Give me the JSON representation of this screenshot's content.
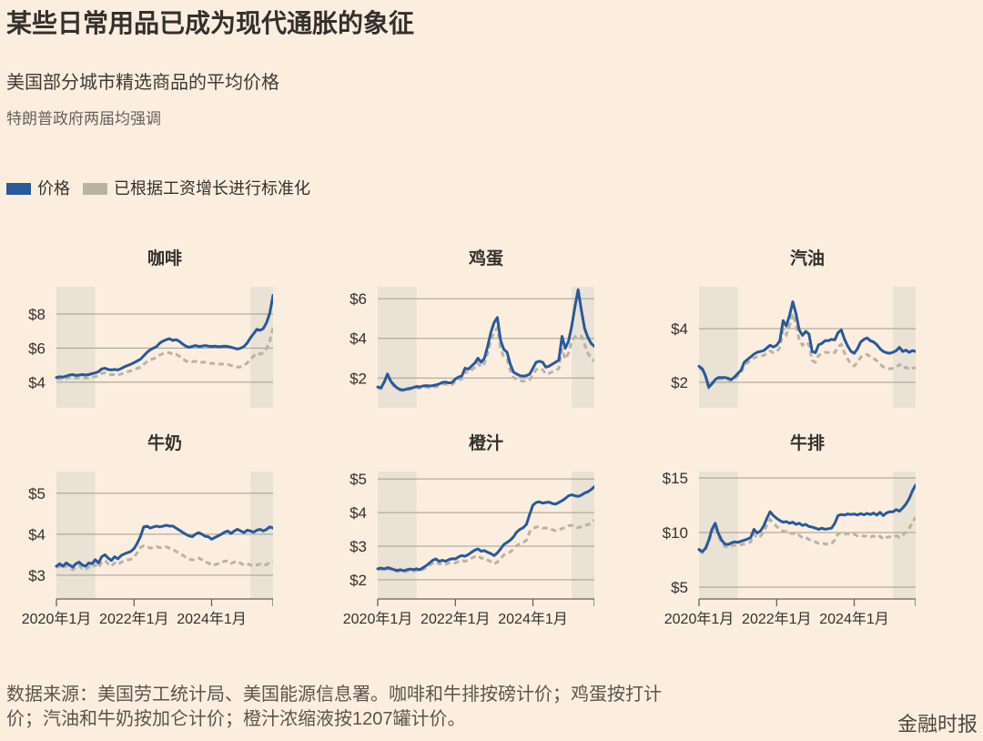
{
  "header": {
    "title": "某些日常用品已成为现代通胀的象征",
    "subtitle": "美国部分城市精选商品的平均价格",
    "note": "特朗普政府两届均强调"
  },
  "legend": {
    "price_label": "价格",
    "normalized_label": "已根据工资增长进行标准化"
  },
  "colors": {
    "background": "#FCEEDF",
    "price_line": "#27599C",
    "normalized_line": "#BCB2A4",
    "band": "#E9E2D5",
    "gridline": "#A29B91",
    "axis": "#66605C",
    "text_dark": "#33302E",
    "text_muted": "#66605C"
  },
  "footer": {
    "source": "数据来源：美国劳工统计局、美国能源信息署。咖啡和牛排按磅计价；鸡蛋按打计价；汽油和牛奶按加仑计价；橙汁浓缩液按1207罐计价。",
    "brand": "金融时报"
  },
  "chart_data": {
    "type": "line",
    "layout": "3x2 small multiples",
    "x_start": "2020-01",
    "x_end": "2025-08",
    "n_points": 68,
    "x_tick_labels": [
      "2020年1月",
      "2022年1月",
      "2024年1月"
    ],
    "x_tick_months": [
      0,
      24,
      48
    ],
    "shaded_bands_months": [
      [
        0,
        12
      ],
      [
        60,
        68
      ]
    ],
    "series_names": [
      "价格",
      "已根据工资增长进行标准化"
    ],
    "charts": [
      {
        "key": "coffee",
        "title": "咖啡",
        "ymin": 2.5,
        "ymax": 9.6,
        "yticks": [
          4,
          6,
          8
        ],
        "ytick_labels": [
          "$4",
          "$6",
          "$8"
        ],
        "price": [
          4.28,
          4.32,
          4.3,
          4.36,
          4.42,
          4.45,
          4.4,
          4.42,
          4.45,
          4.42,
          4.45,
          4.5,
          4.55,
          4.62,
          4.78,
          4.82,
          4.75,
          4.72,
          4.75,
          4.72,
          4.8,
          4.9,
          4.98,
          5.05,
          5.15,
          5.25,
          5.35,
          5.55,
          5.75,
          5.9,
          6.0,
          6.1,
          6.3,
          6.42,
          6.5,
          6.55,
          6.45,
          6.5,
          6.4,
          6.25,
          6.12,
          6.05,
          6.1,
          6.15,
          6.1,
          6.12,
          6.15,
          6.12,
          6.1,
          6.12,
          6.08,
          6.1,
          6.12,
          6.1,
          6.05,
          6.0,
          5.95,
          6.0,
          6.1,
          6.3,
          6.6,
          6.85,
          7.1,
          7.05,
          7.15,
          7.5,
          8.05,
          9.1
        ],
        "normalized": [
          4.18,
          4.21,
          4.18,
          4.23,
          4.28,
          4.3,
          4.25,
          4.26,
          4.28,
          4.24,
          4.26,
          4.3,
          4.33,
          4.38,
          4.52,
          4.55,
          4.48,
          4.44,
          4.46,
          4.42,
          4.48,
          4.56,
          4.62,
          4.67,
          4.74,
          4.81,
          4.88,
          5.05,
          5.21,
          5.32,
          5.38,
          5.45,
          5.6,
          5.68,
          5.72,
          5.74,
          5.62,
          5.64,
          5.53,
          5.38,
          5.25,
          5.17,
          5.2,
          5.23,
          5.17,
          5.17,
          5.18,
          5.14,
          5.1,
          5.11,
          5.06,
          5.06,
          5.07,
          5.04,
          4.99,
          4.94,
          4.88,
          4.91,
          4.98,
          5.13,
          5.35,
          5.53,
          5.71,
          5.65,
          5.72,
          5.98,
          6.4,
          7.25
        ]
      },
      {
        "key": "eggs",
        "title": "鸡蛋",
        "ymin": 0.5,
        "ymax": 6.6,
        "yticks": [
          2,
          4,
          6
        ],
        "ytick_labels": [
          "$2",
          "$4",
          "$6"
        ],
        "price": [
          1.55,
          1.5,
          1.8,
          2.2,
          1.85,
          1.65,
          1.5,
          1.42,
          1.4,
          1.45,
          1.48,
          1.52,
          1.58,
          1.55,
          1.6,
          1.62,
          1.6,
          1.62,
          1.65,
          1.7,
          1.78,
          1.8,
          1.75,
          1.78,
          1.95,
          2.05,
          2.1,
          2.5,
          2.45,
          2.6,
          2.75,
          3.0,
          2.8,
          3.0,
          3.6,
          4.3,
          4.8,
          5.05,
          3.9,
          3.45,
          3.3,
          2.7,
          2.3,
          2.2,
          2.12,
          2.1,
          2.12,
          2.2,
          2.5,
          2.8,
          2.85,
          2.8,
          2.55,
          2.6,
          2.7,
          2.8,
          2.9,
          4.1,
          3.5,
          3.85,
          4.6,
          5.6,
          6.45,
          5.4,
          4.5,
          4.05,
          3.75,
          3.6
        ],
        "normalized": [
          1.52,
          1.47,
          1.76,
          2.15,
          1.81,
          1.61,
          1.46,
          1.38,
          1.36,
          1.41,
          1.43,
          1.47,
          1.52,
          1.49,
          1.53,
          1.55,
          1.52,
          1.54,
          1.56,
          1.61,
          1.68,
          1.69,
          1.65,
          1.67,
          1.82,
          1.91,
          1.95,
          2.32,
          2.27,
          2.4,
          2.53,
          2.75,
          2.56,
          2.73,
          3.27,
          3.89,
          4.32,
          4.52,
          3.48,
          3.07,
          2.93,
          2.39,
          2.03,
          1.94,
          1.87,
          1.84,
          1.86,
          1.92,
          2.18,
          2.43,
          2.47,
          2.42,
          2.2,
          2.24,
          2.31,
          2.39,
          2.47,
          3.48,
          2.96,
          3.25,
          3.85,
          4.08,
          4.15,
          4.1,
          3.7,
          3.25,
          3.0,
          2.85
        ]
      },
      {
        "key": "gasoline",
        "title": "汽油",
        "ymin": 1.05,
        "ymax": 5.56,
        "yticks": [
          2,
          4
        ],
        "ytick_labels": [
          "$2",
          "$4"
        ],
        "price": [
          2.6,
          2.5,
          2.25,
          1.82,
          1.95,
          2.1,
          2.18,
          2.18,
          2.18,
          2.15,
          2.1,
          2.2,
          2.33,
          2.45,
          2.75,
          2.85,
          2.95,
          3.05,
          3.12,
          3.15,
          3.18,
          3.28,
          3.38,
          3.32,
          3.38,
          3.55,
          4.3,
          4.1,
          4.5,
          5.0,
          4.55,
          3.95,
          3.75,
          3.9,
          3.8,
          3.15,
          3.1,
          3.4,
          3.45,
          3.55,
          3.55,
          3.6,
          3.58,
          3.85,
          3.95,
          3.6,
          3.35,
          3.15,
          3.08,
          3.25,
          3.5,
          3.6,
          3.65,
          3.55,
          3.5,
          3.4,
          3.25,
          3.15,
          3.1,
          3.08,
          3.12,
          3.18,
          3.3,
          3.15,
          3.2,
          3.12,
          3.18,
          3.15
        ],
        "normalized": [
          2.56,
          2.46,
          2.21,
          1.79,
          1.92,
          2.06,
          2.13,
          2.13,
          2.12,
          2.09,
          2.04,
          2.13,
          2.25,
          2.36,
          2.64,
          2.73,
          2.82,
          2.9,
          2.96,
          2.98,
          3.0,
          3.08,
          3.17,
          3.1,
          3.14,
          3.29,
          3.97,
          3.77,
          4.12,
          4.56,
          4.13,
          3.57,
          3.38,
          3.5,
          3.4,
          2.81,
          2.75,
          3.01,
          3.04,
          3.12,
          3.11,
          3.14,
          3.11,
          3.33,
          3.41,
          3.09,
          2.86,
          2.68,
          2.61,
          2.74,
          2.94,
          3.01,
          3.04,
          2.95,
          2.89,
          2.8,
          2.67,
          2.57,
          2.52,
          2.5,
          2.53,
          2.57,
          2.66,
          2.53,
          2.56,
          2.49,
          2.53,
          2.55
        ]
      },
      {
        "key": "milk",
        "title": "牛奶",
        "ymin": 2.42,
        "ymax": 5.53,
        "yticks": [
          3,
          4,
          5
        ],
        "ytick_labels": [
          "$3",
          "$4",
          "$5"
        ],
        "price": [
          3.22,
          3.28,
          3.22,
          3.3,
          3.25,
          3.2,
          3.28,
          3.32,
          3.25,
          3.22,
          3.3,
          3.28,
          3.38,
          3.3,
          3.45,
          3.5,
          3.42,
          3.36,
          3.45,
          3.4,
          3.48,
          3.52,
          3.55,
          3.58,
          3.65,
          3.78,
          3.95,
          4.18,
          4.2,
          4.15,
          4.18,
          4.2,
          4.18,
          4.2,
          4.22,
          4.2,
          4.2,
          4.15,
          4.1,
          4.05,
          4.0,
          3.96,
          3.94,
          4.0,
          4.04,
          4.0,
          3.95,
          3.94,
          3.88,
          3.92,
          3.96,
          4.0,
          4.05,
          4.08,
          4.02,
          4.08,
          4.12,
          4.08,
          4.04,
          4.1,
          4.08,
          4.05,
          4.1,
          4.12,
          4.08,
          4.12,
          4.18,
          4.15
        ],
        "normalized": [
          3.18,
          3.23,
          3.17,
          3.24,
          3.19,
          3.13,
          3.2,
          3.24,
          3.16,
          3.13,
          3.2,
          3.17,
          3.26,
          3.18,
          3.32,
          3.36,
          3.28,
          3.22,
          3.3,
          3.25,
          3.32,
          3.35,
          3.37,
          3.39,
          3.44,
          3.55,
          3.68,
          3.72,
          3.7,
          3.66,
          3.68,
          3.7,
          3.67,
          3.68,
          3.69,
          3.66,
          3.64,
          3.58,
          3.54,
          3.49,
          3.44,
          3.4,
          3.37,
          3.4,
          3.42,
          3.38,
          3.32,
          3.3,
          3.24,
          3.26,
          3.28,
          3.31,
          3.34,
          3.35,
          3.29,
          3.32,
          3.34,
          3.29,
          3.25,
          3.28,
          3.25,
          3.22,
          3.25,
          3.27,
          3.24,
          3.26,
          3.31,
          3.33
        ]
      },
      {
        "key": "orange-juice",
        "title": "橙汁",
        "ymin": 1.43,
        "ymax": 5.22,
        "yticks": [
          2,
          3,
          4,
          5
        ],
        "ytick_labels": [
          "$2",
          "$3",
          "$4",
          "$5"
        ],
        "price": [
          2.33,
          2.35,
          2.32,
          2.36,
          2.34,
          2.3,
          2.28,
          2.3,
          2.27,
          2.3,
          2.32,
          2.3,
          2.33,
          2.3,
          2.36,
          2.42,
          2.5,
          2.58,
          2.62,
          2.55,
          2.58,
          2.55,
          2.6,
          2.63,
          2.62,
          2.68,
          2.72,
          2.7,
          2.75,
          2.82,
          2.88,
          2.92,
          2.85,
          2.87,
          2.82,
          2.78,
          2.72,
          2.8,
          2.92,
          3.05,
          3.11,
          3.18,
          3.28,
          3.42,
          3.5,
          3.55,
          3.65,
          3.95,
          4.22,
          4.3,
          4.32,
          4.28,
          4.3,
          4.31,
          4.27,
          4.25,
          4.3,
          4.35,
          4.42,
          4.5,
          4.53,
          4.5,
          4.48,
          4.52,
          4.58,
          4.62,
          4.68,
          4.77
        ],
        "normalized": [
          2.3,
          2.32,
          2.29,
          2.33,
          2.31,
          2.27,
          2.25,
          2.26,
          2.23,
          2.26,
          2.28,
          2.26,
          2.28,
          2.25,
          2.31,
          2.36,
          2.43,
          2.5,
          2.54,
          2.47,
          2.49,
          2.46,
          2.5,
          2.52,
          2.5,
          2.55,
          2.58,
          2.55,
          2.59,
          2.64,
          2.69,
          2.72,
          2.64,
          2.65,
          2.59,
          2.54,
          2.47,
          2.53,
          2.63,
          2.74,
          2.78,
          2.83,
          2.91,
          3.02,
          3.08,
          3.11,
          3.18,
          3.43,
          3.52,
          3.57,
          3.58,
          3.54,
          3.54,
          3.54,
          3.49,
          3.46,
          3.49,
          3.52,
          3.56,
          3.61,
          3.62,
          3.58,
          3.55,
          3.58,
          3.62,
          3.64,
          3.68,
          3.78
        ]
      },
      {
        "key": "steak",
        "title": "牛排",
        "ymin": 3.92,
        "ymax": 15.58,
        "yticks": [
          5,
          10,
          15
        ],
        "ytick_labels": [
          "$5",
          "$10",
          "$15"
        ],
        "price": [
          8.45,
          8.25,
          8.55,
          9.3,
          10.3,
          10.85,
          9.9,
          9.3,
          8.95,
          8.9,
          9.05,
          9.15,
          9.1,
          9.2,
          9.3,
          9.4,
          9.55,
          10.3,
          9.95,
          10.15,
          10.6,
          11.3,
          11.9,
          11.55,
          11.3,
          11.1,
          10.95,
          11.0,
          10.85,
          10.95,
          10.75,
          10.85,
          10.65,
          10.75,
          10.55,
          10.5,
          10.4,
          10.3,
          10.4,
          10.3,
          10.35,
          10.4,
          10.85,
          11.55,
          11.65,
          11.6,
          11.7,
          11.65,
          11.7,
          11.6,
          11.72,
          11.62,
          11.75,
          11.65,
          11.78,
          11.6,
          11.85,
          11.55,
          11.8,
          11.9,
          11.9,
          12.1,
          11.95,
          12.25,
          12.6,
          13.1,
          13.8,
          14.35
        ],
        "normalized": [
          8.35,
          8.15,
          8.45,
          9.15,
          10.1,
          10.62,
          9.68,
          9.08,
          8.72,
          8.65,
          8.78,
          8.85,
          8.8,
          8.88,
          8.95,
          9.02,
          9.15,
          9.85,
          9.5,
          9.67,
          10.05,
          10.68,
          11.2,
          10.85,
          10.55,
          10.32,
          10.12,
          10.1,
          9.92,
          9.95,
          9.72,
          9.76,
          9.52,
          9.56,
          9.35,
          9.26,
          9.14,
          9.02,
          9.07,
          8.95,
          8.96,
          8.97,
          9.32,
          9.88,
          9.93,
          9.85,
          9.9,
          9.82,
          9.83,
          9.7,
          9.77,
          9.65,
          9.72,
          9.6,
          9.68,
          9.5,
          9.67,
          9.39,
          9.56,
          9.61,
          9.58,
          9.71,
          9.56,
          9.77,
          10.02,
          10.38,
          10.9,
          11.4
        ]
      }
    ]
  }
}
